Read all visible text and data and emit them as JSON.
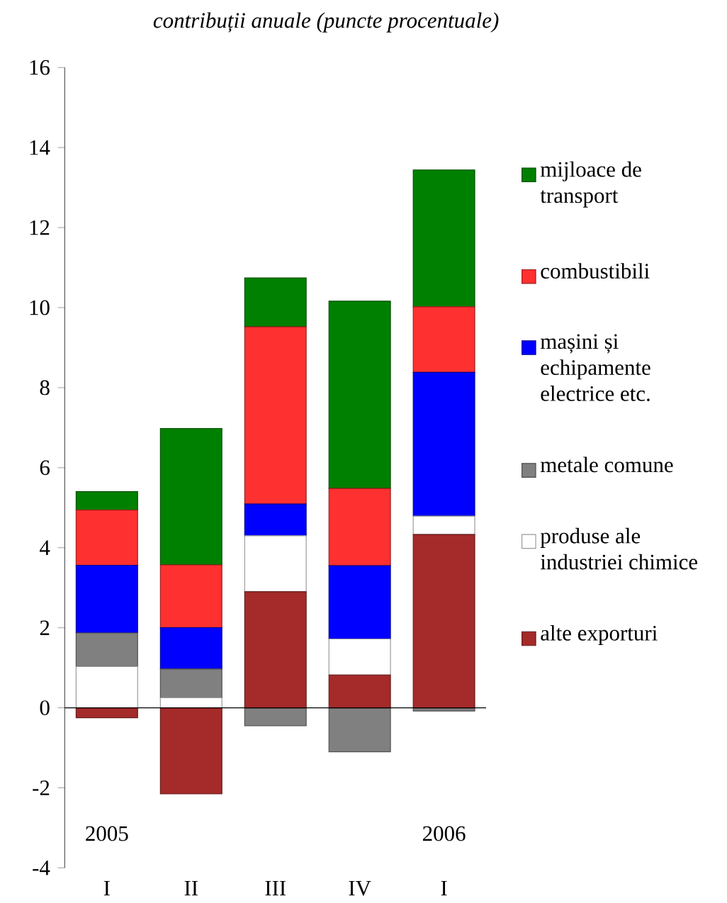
{
  "chart_data": {
    "type": "bar",
    "stacked": true,
    "title": "contribuții anuale (puncte procentuale)",
    "categories": [
      "I",
      "II",
      "III",
      "IV",
      "I"
    ],
    "annotations": [
      "2005",
      "2006"
    ],
    "series": [
      {
        "name": "alte exporturi",
        "color": "#a52a2a",
        "values": [
          -0.25,
          -2.15,
          2.9,
          0.82,
          4.33
        ]
      },
      {
        "name": "produse ale industriei chimice",
        "color": "#ffffff",
        "values": [
          1.03,
          0.25,
          1.4,
          0.9,
          0.46
        ]
      },
      {
        "name": "metale comune",
        "color": "#808080",
        "values": [
          0.84,
          0.72,
          -0.45,
          -1.1,
          -0.08
        ]
      },
      {
        "name": "mașini și echipamente electrice etc.",
        "color": "#0000ff",
        "values": [
          1.69,
          1.03,
          0.79,
          1.83,
          3.59
        ]
      },
      {
        "name": "combustibili",
        "color": "#ff3030",
        "values": [
          1.38,
          1.57,
          4.43,
          1.93,
          1.64
        ]
      },
      {
        "name": "mijloace de transport",
        "color": "#008000",
        "values": [
          0.46,
          3.41,
          1.22,
          4.68,
          3.42
        ]
      }
    ],
    "ylim": [
      -4,
      16
    ],
    "yticks": [
      -4,
      -2,
      0,
      2,
      4,
      6,
      8,
      10,
      12,
      14,
      16
    ],
    "legend": "right"
  }
}
